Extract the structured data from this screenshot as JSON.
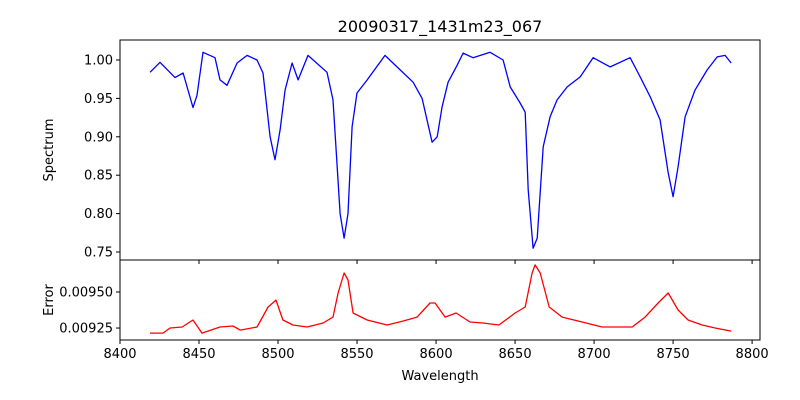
{
  "chart_data": [
    {
      "type": "line",
      "title": "20090317_1431m23_067",
      "xlabel": "",
      "ylabel": "Spectrum",
      "xlim": [
        8400,
        8805
      ],
      "ylim": [
        0.7396,
        1.026
      ],
      "yticks": [
        "0.75",
        "0.80",
        "0.85",
        "0.90",
        "0.95",
        "1.00"
      ],
      "color": "#0000ff",
      "series": [
        {
          "name": "Spectrum",
          "x": [
            8419,
            8425.3,
            8434.8,
            8439.9,
            8446.2,
            8448.7,
            8452.5,
            8460.1,
            8463.3,
            8467.7,
            8474.1,
            8480.4,
            8486.7,
            8490.5,
            8495,
            8498.1,
            8501.3,
            8504.5,
            8508.9,
            8512.7,
            8519,
            8531,
            8534.8,
            8539.3,
            8541.8,
            8544.3,
            8546.9,
            8550,
            8556.4,
            8567.7,
            8575.3,
            8585.5,
            8591.2,
            8597.5,
            8600.7,
            8603.8,
            8607.6,
            8613.3,
            8617.1,
            8623.4,
            8634.2,
            8642.4,
            8646.9,
            8653.2,
            8656.4,
            8658.3,
            8661.4,
            8664,
            8667.8,
            8672.2,
            8676.6,
            8683,
            8691.2,
            8699.4,
            8710.2,
            8722.8,
            8729.2,
            8735.5,
            8741.8,
            8746.9,
            8750,
            8753.2,
            8757.6,
            8763.9,
            8771.5,
            8777.9,
            8782.9,
            8786.8
          ],
          "y": [
            0.984,
            0.997,
            0.977,
            0.983,
            0.938,
            0.954,
            1.01,
            1.003,
            0.974,
            0.967,
            0.996,
            1.006,
            1.0,
            0.983,
            0.9,
            0.87,
            0.909,
            0.961,
            0.996,
            0.974,
            1.006,
            0.984,
            0.948,
            0.8,
            0.768,
            0.8,
            0.913,
            0.957,
            0.974,
            1.006,
            0.991,
            0.971,
            0.95,
            0.893,
            0.9,
            0.939,
            0.971,
            0.993,
            1.009,
            1.003,
            1.01,
            1.0,
            0.965,
            0.944,
            0.932,
            0.831,
            0.755,
            0.768,
            0.887,
            0.926,
            0.948,
            0.965,
            0.978,
            1.003,
            0.991,
            1.003,
            0.978,
            0.952,
            0.922,
            0.853,
            0.822,
            0.861,
            0.926,
            0.961,
            0.987,
            1.004,
            1.006,
            0.996
          ]
        }
      ]
    },
    {
      "type": "line",
      "title": "",
      "xlabel": "Wavelength",
      "ylabel": "Error",
      "xlim": [
        8400,
        8805
      ],
      "ylim": [
        0.009167,
        0.009722
      ],
      "xticks": [
        "8400",
        "8450",
        "8500",
        "8550",
        "8600",
        "8650",
        "8700",
        "8750",
        "8800"
      ],
      "yticks": [
        "0.00925",
        "0.00950"
      ],
      "color": "#ff0000",
      "series": [
        {
          "name": "Error",
          "x": [
            8419,
            8427.2,
            8431.7,
            8439.3,
            8446.2,
            8451.9,
            8463.3,
            8471.5,
            8476,
            8486.7,
            8493.7,
            8498.7,
            8503.1,
            8509.5,
            8518.4,
            8528.5,
            8534.8,
            8538,
            8541.8,
            8544.3,
            8547.5,
            8556.4,
            8569,
            8579.2,
            8588,
            8596.2,
            8599.4,
            8605.7,
            8612.7,
            8621.5,
            8629.7,
            8639.8,
            8650,
            8656.4,
            8660.8,
            8662.7,
            8665.9,
            8671.6,
            8679.8,
            8692.5,
            8705.1,
            8713.3,
            8724.1,
            8732.3,
            8740.5,
            8746.9,
            8753.2,
            8759.5,
            8768.4,
            8776.6,
            8786.8
          ],
          "y": [
            0.009215,
            0.009215,
            0.00925,
            0.009257,
            0.009306,
            0.009215,
            0.009257,
            0.009264,
            0.009236,
            0.009257,
            0.009396,
            0.009444,
            0.009306,
            0.009271,
            0.009257,
            0.009285,
            0.009326,
            0.009493,
            0.009632,
            0.009583,
            0.009354,
            0.009306,
            0.009271,
            0.009299,
            0.009326,
            0.009424,
            0.009424,
            0.009326,
            0.009354,
            0.009292,
            0.009285,
            0.009271,
            0.009354,
            0.009396,
            0.009632,
            0.009688,
            0.009632,
            0.009396,
            0.009326,
            0.009292,
            0.009257,
            0.009257,
            0.009257,
            0.009326,
            0.009424,
            0.009493,
            0.009375,
            0.009306,
            0.009271,
            0.00925,
            0.009229
          ]
        }
      ]
    }
  ]
}
